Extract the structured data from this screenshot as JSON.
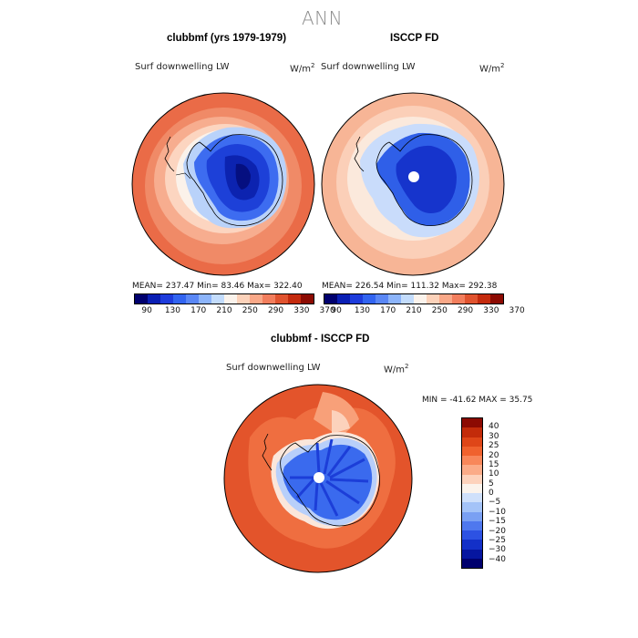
{
  "figure": {
    "title": "ANN"
  },
  "panels": {
    "model": {
      "title": "clubbmf (yrs 1979-1979)",
      "variable": "Surf downwelling LW",
      "units": "W/m",
      "units_sup": "2",
      "stats": "MEAN= 237.47    Min=   83.46    Max= 322.40",
      "has_pole_hole": false
    },
    "obs": {
      "title": "ISCCP FD",
      "variable": "Surf downwelling LW",
      "units": "W/m",
      "units_sup": "2",
      "stats": "MEAN= 226.54    Min= 111.32    Max= 292.38",
      "has_pole_hole": true
    },
    "diff": {
      "title": "clubbmf - ISCCP FD",
      "variable": "Surf downwelling LW",
      "units": "W/m",
      "units_sup": "2",
      "stats": "MIN = -41.62  MAX =   35.75",
      "has_pole_hole": true
    }
  },
  "colorbar_abs": {
    "colors": [
      "#00006e",
      "#0a1fb4",
      "#1e3cdc",
      "#3264f0",
      "#5a87f5",
      "#8cb4fa",
      "#c3dcfc",
      "#fbf3ec",
      "#fcd2ba",
      "#f9a888",
      "#f27e5d",
      "#e0532f",
      "#c42b0e",
      "#8c0a02"
    ],
    "ticks": [
      "90",
      "130",
      "170",
      "210",
      "250",
      "290",
      "330",
      "370"
    ]
  },
  "colorbar_diff": {
    "colors": [
      "#8c0a02",
      "#c32b0a",
      "#df4618",
      "#f0622e",
      "#f8875a",
      "#fbab88",
      "#fdd2bc",
      "#fbf3ec",
      "#cfe0fb",
      "#a4c3f8",
      "#7aa0f3",
      "#4f78ee",
      "#2d52e3",
      "#1330c8",
      "#0616a0",
      "#00006e"
    ],
    "ticks": [
      "40",
      "30",
      "25",
      "20",
      "15",
      "10",
      "5",
      "0",
      "−5",
      "−10",
      "−15",
      "−20",
      "−25",
      "−30",
      "−40"
    ]
  }
}
